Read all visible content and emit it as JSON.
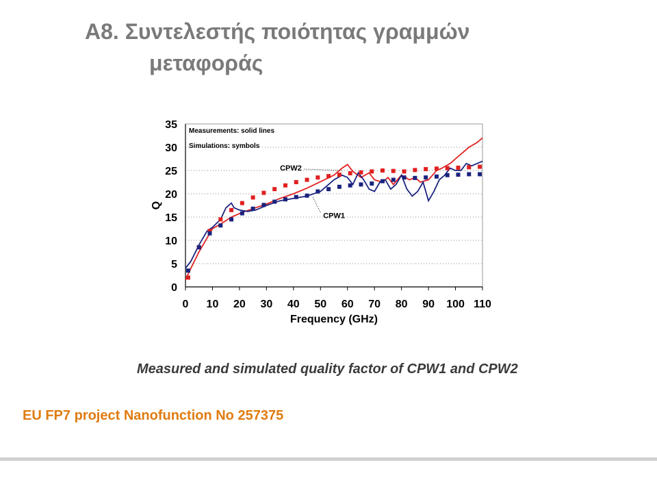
{
  "slide": {
    "title_line1": "A8. Συντελεστής ποιότητας γραμμών",
    "title_line2": "μεταφοράς",
    "caption": "Measured and simulated quality factor of CPW1 and CPW2",
    "footer": "EU FP7 project Nanofunction No 257375"
  },
  "chart_data": {
    "type": "line",
    "xlabel": "Frequency (GHz)",
    "ylabel": "Q",
    "xlim": [
      0,
      110
    ],
    "ylim": [
      0,
      35
    ],
    "x_ticks": [
      "0",
      "10",
      "20",
      "30",
      "40",
      "50",
      "60",
      "70",
      "80",
      "90",
      "100",
      "110"
    ],
    "y_ticks": [
      "0",
      "5",
      "10",
      "15",
      "20",
      "25",
      "30",
      "35"
    ],
    "grid": "horizontal-dotted",
    "annotations": [
      {
        "text": "Measurements: solid lines"
      },
      {
        "text": "Simulations: symbols"
      },
      {
        "text": "CPW2",
        "points_to": [
          58,
          25
        ]
      },
      {
        "text": "CPW1",
        "points_to": [
          47,
          19.5
        ]
      }
    ],
    "series": [
      {
        "name": "CPW2",
        "kind": "measured",
        "style": "line",
        "color": "#e02020",
        "x": [
          0,
          2,
          5,
          8,
          10,
          13,
          17,
          21,
          25,
          30,
          35,
          40,
          45,
          50,
          55,
          58,
          60,
          62,
          65,
          68,
          70,
          73,
          75,
          77,
          80,
          83,
          85,
          87,
          90,
          93,
          95,
          98,
          100,
          103,
          105,
          108,
          110
        ],
        "y": [
          1.5,
          4,
          7.5,
          10.5,
          12.5,
          13.5,
          15,
          16,
          16.8,
          17.8,
          19,
          20,
          21.2,
          22.6,
          24,
          25.5,
          26.3,
          24.8,
          23.5,
          24.5,
          23,
          22.5,
          23.5,
          22,
          24,
          23,
          23.5,
          22.5,
          23,
          25,
          25.5,
          26.5,
          27.5,
          29,
          30,
          31,
          32
        ]
      },
      {
        "name": "CPW1",
        "kind": "measured",
        "style": "line",
        "color": "#1a237e",
        "x": [
          0,
          2,
          5,
          8,
          10,
          13,
          15,
          17,
          18,
          20,
          23,
          26,
          30,
          35,
          40,
          45,
          50,
          53,
          55,
          58,
          60,
          62,
          64,
          66,
          68,
          70,
          72,
          74,
          76,
          78,
          80,
          82,
          84,
          86,
          88,
          90,
          92,
          94,
          96,
          98,
          100,
          102,
          104,
          106,
          108,
          110
        ],
        "y": [
          4,
          5.5,
          9,
          12,
          12.8,
          14.5,
          17,
          18,
          17,
          16.5,
          16.2,
          16.5,
          17.5,
          18.5,
          19,
          19.5,
          20.5,
          22,
          23,
          24,
          23.5,
          22,
          24.5,
          23,
          21,
          20.5,
          22.5,
          23,
          21,
          22,
          24,
          21,
          19.5,
          20.5,
          22.5,
          18.5,
          20.5,
          23,
          24,
          25.5,
          25,
          25,
          26.5,
          26,
          26.5,
          27
        ]
      },
      {
        "name": "CPW2",
        "kind": "simulated",
        "style": "square",
        "color": "#e02020",
        "x": [
          1,
          5,
          9,
          13,
          17,
          21,
          25,
          29,
          33,
          37,
          41,
          45,
          49,
          53,
          57,
          61,
          65,
          69,
          73,
          77,
          81,
          85,
          89,
          93,
          97,
          101,
          105,
          109
        ],
        "y": [
          2,
          8.5,
          12,
          14.5,
          16.5,
          18,
          19.2,
          20.2,
          21,
          21.8,
          22.5,
          23,
          23.5,
          23.8,
          24.1,
          24.4,
          24.6,
          24.8,
          25,
          24.9,
          24.8,
          25.1,
          25.3,
          25.4,
          25.5,
          25.6,
          25.7,
          25.8
        ]
      },
      {
        "name": "CPW1",
        "kind": "simulated",
        "style": "square",
        "color": "#1a237e",
        "x": [
          1,
          5,
          9,
          13,
          17,
          21,
          25,
          29,
          33,
          37,
          41,
          45,
          49,
          53,
          57,
          61,
          65,
          69,
          73,
          77,
          81,
          85,
          89,
          93,
          97,
          101,
          105,
          109
        ],
        "y": [
          3.5,
          8.5,
          11.5,
          13.2,
          14.5,
          15.8,
          16.8,
          17.6,
          18.3,
          18.8,
          19.3,
          19.6,
          20.5,
          21,
          21.5,
          21.8,
          22,
          22.2,
          22.7,
          23,
          23.5,
          23.4,
          23.5,
          23.7,
          24,
          24.1,
          24.2,
          24.2
        ]
      }
    ]
  }
}
